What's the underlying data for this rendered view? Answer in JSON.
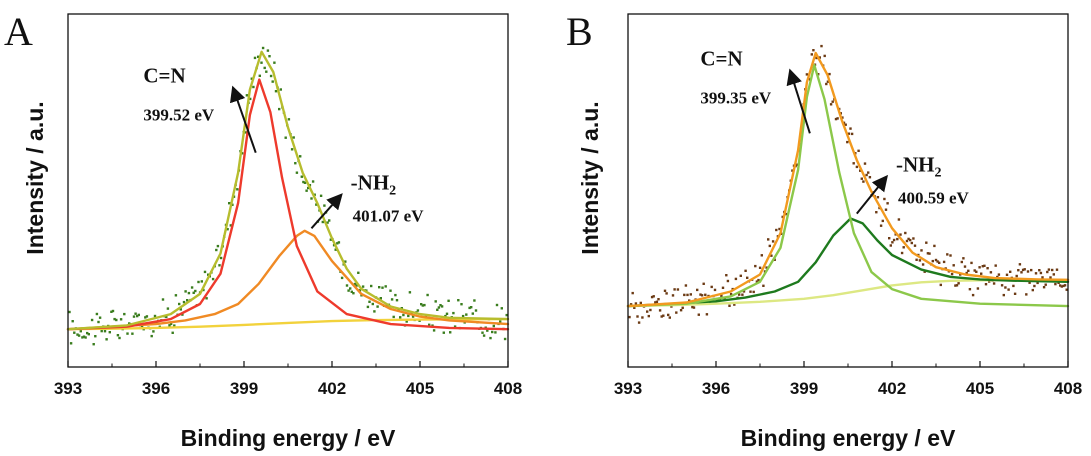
{
  "chart_data": [
    {
      "type": "line",
      "panel": "A",
      "xlabel": "Binding energy / eV",
      "ylabel": "Intensity / a.u.",
      "xlim": [
        393,
        408
      ],
      "ylim": [
        -0.15,
        1.25
      ],
      "x_ticks": [
        393,
        396,
        399,
        402,
        405,
        408
      ],
      "grid": false,
      "point_color": "#3a7d1e",
      "series": [
        {
          "kind": "curve",
          "color": "#f2d23c",
          "x": [
            393,
            394.5,
            396,
            397.5,
            399,
            400.5,
            402,
            403.5,
            405,
            406.5,
            408
          ],
          "y": [
            0,
            0.002,
            0.005,
            0.01,
            0.017,
            0.025,
            0.032,
            0.036,
            0.038,
            0.039,
            0.04
          ]
        },
        {
          "kind": "curve",
          "color": "#f08a24",
          "x": [
            393,
            396,
            397,
            398,
            398.8,
            399.5,
            400.2,
            400.8,
            401.07,
            401.4,
            402,
            403,
            404,
            405,
            406,
            408
          ],
          "y": [
            0,
            0.02,
            0.035,
            0.06,
            0.1,
            0.18,
            0.29,
            0.37,
            0.39,
            0.37,
            0.27,
            0.14,
            0.08,
            0.05,
            0.035,
            0.02
          ]
        },
        {
          "kind": "curve",
          "color": "#ee3a2c",
          "x": [
            393,
            395,
            396.5,
            397.5,
            398.2,
            398.8,
            399.2,
            399.52,
            399.9,
            400.3,
            400.8,
            401.5,
            402.5,
            404,
            406,
            408
          ],
          "y": [
            0,
            0.01,
            0.04,
            0.1,
            0.22,
            0.5,
            0.85,
            0.99,
            0.86,
            0.6,
            0.33,
            0.15,
            0.06,
            0.02,
            0.005,
            0
          ]
        },
        {
          "kind": "curve",
          "color": "#b7bd2e",
          "x": [
            393,
            395,
            396.5,
            397.5,
            398.2,
            398.8,
            399.2,
            399.6,
            400,
            400.5,
            401,
            401.5,
            402,
            402.5,
            403,
            404,
            405,
            406,
            408
          ],
          "y": [
            0,
            0.015,
            0.06,
            0.14,
            0.3,
            0.62,
            0.95,
            1.1,
            1.02,
            0.8,
            0.62,
            0.5,
            0.36,
            0.24,
            0.16,
            0.09,
            0.06,
            0.045,
            0.04
          ]
        }
      ],
      "annotations": [
        {
          "peak": "C=N",
          "value": "399.52 eV",
          "peak_x": 399.4,
          "peak_y": 0.7,
          "label_x": 397.0,
          "label_y": 0.97
        },
        {
          "peak": "-NH",
          "sub": "2",
          "value": "401.07 eV",
          "peak_x": 401.3,
          "peak_y": 0.4,
          "label_x": 402.5,
          "label_y": 0.57
        }
      ]
    },
    {
      "type": "line",
      "panel": "B",
      "xlabel": "Binding energy / eV",
      "ylabel": "Intensity / a.u.",
      "xlim": [
        393,
        408
      ],
      "ylim": [
        -0.25,
        1.2
      ],
      "x_ticks": [
        393,
        396,
        399,
        402,
        405,
        408
      ],
      "grid": false,
      "point_color": "#6b3a14",
      "series": [
        {
          "kind": "curve",
          "color": "#dde883",
          "x": [
            393,
            394.5,
            396,
            397.5,
            399,
            400,
            401,
            402,
            403,
            404,
            405,
            406,
            408
          ],
          "y": [
            0,
            0.004,
            0.01,
            0.018,
            0.03,
            0.045,
            0.065,
            0.085,
            0.098,
            0.104,
            0.106,
            0.107,
            0.107
          ]
        },
        {
          "kind": "curve",
          "color": "#1e7a1e",
          "x": [
            393,
            396,
            397,
            398,
            398.8,
            399.4,
            400,
            400.59,
            401,
            401.5,
            402,
            403,
            404,
            405,
            406,
            408
          ],
          "y": [
            0,
            0.02,
            0.035,
            0.06,
            0.1,
            0.18,
            0.29,
            0.36,
            0.34,
            0.27,
            0.21,
            0.15,
            0.12,
            0.11,
            0.105,
            0.1
          ]
        },
        {
          "kind": "curve",
          "color": "#8cc84a",
          "x": [
            393,
            395,
            396.5,
            397.5,
            398.2,
            398.8,
            399.1,
            399.35,
            399.7,
            400.2,
            400.7,
            401.3,
            402,
            403,
            405,
            408
          ],
          "y": [
            0,
            0.01,
            0.04,
            0.1,
            0.24,
            0.56,
            0.86,
            0.99,
            0.85,
            0.55,
            0.3,
            0.14,
            0.07,
            0.03,
            0.01,
            0
          ]
        },
        {
          "kind": "curve",
          "color": "#f29a1f",
          "x": [
            393,
            395,
            396.5,
            397.5,
            398.2,
            398.8,
            399.1,
            399.4,
            399.8,
            400.3,
            400.8,
            401.3,
            402,
            402.7,
            403.5,
            404.5,
            405.5,
            407,
            408
          ],
          "y": [
            0,
            0.015,
            0.06,
            0.13,
            0.3,
            0.64,
            0.92,
            1.04,
            0.95,
            0.76,
            0.6,
            0.47,
            0.32,
            0.22,
            0.16,
            0.13,
            0.115,
            0.11,
            0.108
          ]
        }
      ],
      "annotations": [
        {
          "peak": "C=N",
          "value": "399.35 eV",
          "peak_x": 399.2,
          "peak_y": 0.71,
          "label_x": 396.9,
          "label_y": 0.98
        },
        {
          "peak": "-NH",
          "sub": "2",
          "value": "400.59 eV",
          "peak_x": 400.8,
          "peak_y": 0.38,
          "label_x": 402.0,
          "label_y": 0.57
        }
      ]
    }
  ]
}
